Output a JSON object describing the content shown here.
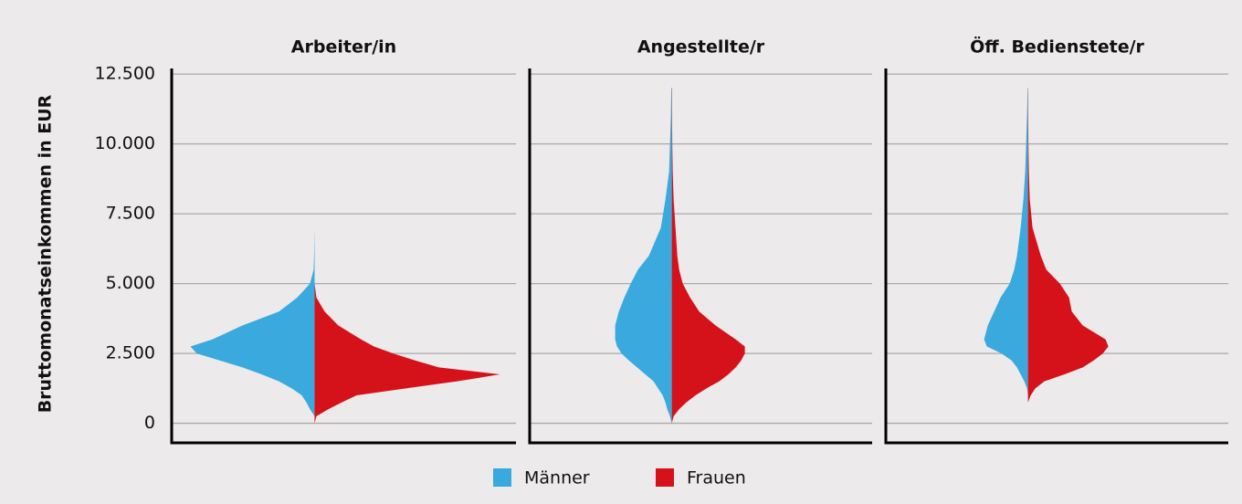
{
  "chart_data": {
    "type": "violin",
    "ylabel": "Bruttomonatseinkommen in EUR",
    "ylim": [
      -700,
      12700
    ],
    "yticks": [
      0,
      {
        "value": 2500,
        "label": "2.500"
      },
      {
        "value": 5000,
        "label": "5.000"
      },
      {
        "value": 7500,
        "label": "7.500"
      },
      {
        "value": 10000,
        "label": "10.000"
      },
      {
        "value": 12500,
        "label": "12.500"
      }
    ],
    "grid": true,
    "series": [
      {
        "name": "Männer",
        "color": "#39a9de"
      },
      {
        "name": "Frauen",
        "color": "#d51219"
      }
    ],
    "y": [
      0,
      250,
      500,
      750,
      1000,
      1250,
      1500,
      1750,
      2000,
      2250,
      2500,
      2750,
      3000,
      3500,
      4000,
      4500,
      5000,
      5500,
      6000,
      7000,
      8000,
      9000,
      10000,
      11000,
      12000
    ],
    "panels": [
      {
        "title": "Arbeiter/in",
        "values": [
          [
            0,
            0,
            5,
            9,
            14,
            25,
            39,
            58,
            79,
            104,
            129,
            136,
            112,
            79,
            39,
            19,
            5,
            1,
            0.5,
            0,
            0,
            0,
            0,
            0,
            0
          ],
          [
            0,
            2,
            15,
            30,
            46,
            100,
            156,
            203,
            136,
            110,
            86,
            65,
            51,
            26,
            11,
            2,
            0,
            0,
            0,
            0,
            0,
            0,
            0,
            0,
            0
          ]
        ]
      },
      {
        "title": "Angestellte/r",
        "values": [
          [
            0,
            2,
            5,
            7,
            10,
            15,
            20,
            29,
            38,
            47,
            55,
            60,
            62,
            62,
            58,
            52,
            45,
            37,
            25,
            12,
            7,
            3,
            2,
            1,
            0.5
          ],
          [
            0,
            2,
            8,
            16,
            26,
            38,
            52,
            62,
            70,
            76,
            80,
            80,
            70,
            48,
            30,
            20,
            12,
            8,
            6,
            4,
            2,
            1,
            0.5,
            0.3,
            0.2
          ]
        ]
      },
      {
        "title": "Öff. Bedienstete/r",
        "values": [
          [
            0,
            0,
            0,
            0,
            0,
            1,
            4,
            8,
            12,
            18,
            29,
            45,
            48,
            44,
            37,
            30,
            20,
            15,
            12,
            8,
            5,
            3,
            2,
            1,
            0.3
          ],
          [
            0,
            0,
            0,
            0,
            3,
            8,
            18,
            40,
            60,
            72,
            82,
            88,
            85,
            60,
            48,
            45,
            35,
            20,
            14,
            5,
            2,
            1,
            0.5,
            0.3,
            0.2
          ]
        ]
      }
    ]
  }
}
